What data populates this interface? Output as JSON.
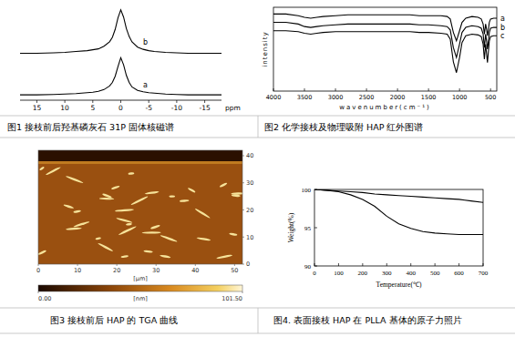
{
  "chart_data": [
    {
      "type": "line",
      "caption": "图1 接枝前后羟基磷灰石 31P 固体核磁谱",
      "x_label": "ppm",
      "x": [
        18,
        15,
        12,
        10,
        8,
        6,
        5,
        4,
        3,
        2,
        1.5,
        1,
        0.5,
        0,
        -0.5,
        -1,
        -1.5,
        -2,
        -3,
        -4,
        -5,
        -6,
        -8,
        -10,
        -12,
        -15,
        -18
      ],
      "xlim": [
        18,
        -18
      ],
      "xticks": [
        15,
        10,
        5,
        0,
        -5,
        -10,
        -15
      ],
      "ylim": [
        0,
        105
      ],
      "tick_labels": "x",
      "series": [
        {
          "name": "a",
          "color": "#000000",
          "values": [
            6,
            6,
            6.5,
            7,
            7.5,
            8.5,
            9,
            10,
            12,
            16,
            20,
            27,
            38,
            48,
            40,
            28,
            20,
            15,
            11,
            9.5,
            8.5,
            8,
            7,
            6.5,
            6,
            6,
            6
          ]
        },
        {
          "name": "b",
          "color": "#000000",
          "values": [
            53,
            53,
            53.5,
            54,
            55,
            56,
            57,
            58,
            61,
            66,
            71,
            80,
            93,
            102,
            94,
            81,
            72,
            66,
            60,
            57.5,
            56,
            55,
            54,
            53.5,
            53,
            53,
            53
          ]
        }
      ]
    },
    {
      "type": "line",
      "caption": "图2 化学接枝及物理吸附 HAP 红外图谱",
      "x_label": "wavenumber(cm⁻¹)",
      "y_label": "intensity",
      "x": [
        4000,
        3800,
        3600,
        3500,
        3400,
        3300,
        3200,
        3000,
        2800,
        2500,
        2200,
        2000,
        1800,
        1650,
        1500,
        1300,
        1200,
        1150,
        1100,
        1050,
        1000,
        960,
        900,
        800,
        700,
        650,
        620,
        600,
        580,
        565,
        550,
        520,
        500,
        450,
        400
      ],
      "xlim": [
        4000,
        400
      ],
      "xticks": [
        4000,
        3500,
        3000,
        2500,
        2000,
        1500,
        1000,
        500
      ],
      "ylim": [
        0,
        100
      ],
      "tick_labels": "x",
      "series": [
        {
          "name": "a",
          "color": "#000000",
          "values": [
            92,
            92,
            90,
            88,
            87,
            88,
            89,
            90,
            91,
            91,
            91,
            91,
            91,
            90,
            90,
            90,
            89,
            86,
            70,
            60,
            72,
            82,
            87,
            89,
            88,
            86,
            80,
            68,
            80,
            74,
            66,
            82,
            86,
            87,
            87
          ]
        },
        {
          "name": "b",
          "color": "#000000",
          "values": [
            82,
            82,
            80,
            77,
            76,
            77,
            78,
            79,
            80,
            80,
            80,
            80,
            80,
            79,
            79,
            78,
            77,
            73,
            52,
            40,
            56,
            70,
            76,
            78,
            77,
            75,
            68,
            52,
            68,
            60,
            50,
            70,
            75,
            76,
            76
          ]
        },
        {
          "name": "c",
          "color": "#000000",
          "values": [
            72,
            72,
            71,
            69,
            68,
            69,
            70,
            71,
            71,
            71,
            71,
            71,
            71,
            70,
            70,
            69,
            68,
            62,
            35,
            22,
            40,
            58,
            66,
            68,
            67,
            65,
            56,
            38,
            56,
            45,
            34,
            60,
            65,
            66,
            66
          ]
        }
      ]
    },
    {
      "type": "image",
      "caption": "图3 接枝前后 HAP 的 TGA 曲线",
      "x_label": "[μm]",
      "xlim": [
        0,
        52
      ],
      "xticks": [
        0,
        10,
        20,
        30,
        40,
        50
      ],
      "ylim": [
        0,
        42
      ],
      "yticks": [
        0,
        10,
        20,
        30,
        40
      ],
      "colorbar_label": "[nm]",
      "colorbar_range": [
        0,
        101.5
      ],
      "colorbar_ticks": [
        {
          "value": 0,
          "label": "0.00"
        },
        {
          "value": 101.5,
          "label": "101.50"
        }
      ]
    },
    {
      "type": "line",
      "caption": "图4. 表面接枝 HAP 在 PLLA 基体的原子力照片",
      "x_label": "Temperature(℃)",
      "y_label": "Weight(%)",
      "x": [
        0,
        50,
        100,
        150,
        200,
        250,
        300,
        350,
        400,
        450,
        500,
        550,
        600,
        650,
        700
      ],
      "xlim": [
        0,
        700
      ],
      "xticks": [
        0,
        100,
        200,
        300,
        400,
        500,
        600,
        700
      ],
      "ylim": [
        90,
        100
      ],
      "yticks": [
        90,
        95,
        100
      ],
      "series": [
        {
          "color": "#000000",
          "values": [
            100,
            99.9,
            99.8,
            99.7,
            99.6,
            99.4,
            99.3,
            99.2,
            99.1,
            99,
            98.9,
            98.8,
            98.7,
            98.5,
            98.3
          ]
        },
        {
          "color": "#000000",
          "values": [
            100,
            99.9,
            99.7,
            99.3,
            98.7,
            97.8,
            96.5,
            95.5,
            94.9,
            94.5,
            94.3,
            94.2,
            94.1,
            94.1,
            94.1
          ]
        }
      ]
    }
  ]
}
